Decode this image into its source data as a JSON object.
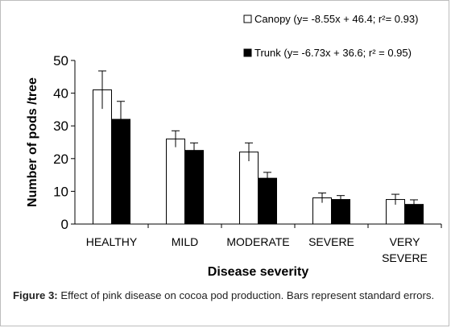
{
  "chart_data": {
    "type": "bar",
    "categories": [
      [
        "HEALTHY"
      ],
      [
        "MILD"
      ],
      [
        "MODERATE"
      ],
      [
        "SEVERE"
      ],
      [
        "VERY",
        "SEVERE"
      ]
    ],
    "series": [
      {
        "name": "Canopy (y= -8.55x + 46.4; r²= 0.93)",
        "color": "#ffffff",
        "values": [
          41,
          26,
          22,
          8,
          7.5
        ],
        "errors": [
          5.8,
          2.5,
          2.8,
          1.5,
          1.6
        ]
      },
      {
        "name": "Trunk (y= -6.73x + 36.6; r² = 0.95)",
        "color": "#000000",
        "values": [
          32,
          22.5,
          14,
          7.5,
          6
        ],
        "errors": [
          5.5,
          2.3,
          1.8,
          1.2,
          1.4
        ]
      }
    ],
    "xlabel": "Disease severity",
    "ylabel": "Number of pods /tree",
    "ylim": [
      0,
      50
    ],
    "yticks": [
      0,
      10,
      20,
      30,
      40,
      50
    ],
    "legend_position": "top-right",
    "grid": false
  },
  "caption": {
    "label": "Figure 3:",
    "text": " Effect of pink disease on cocoa pod production. Bars represent standard errors."
  }
}
